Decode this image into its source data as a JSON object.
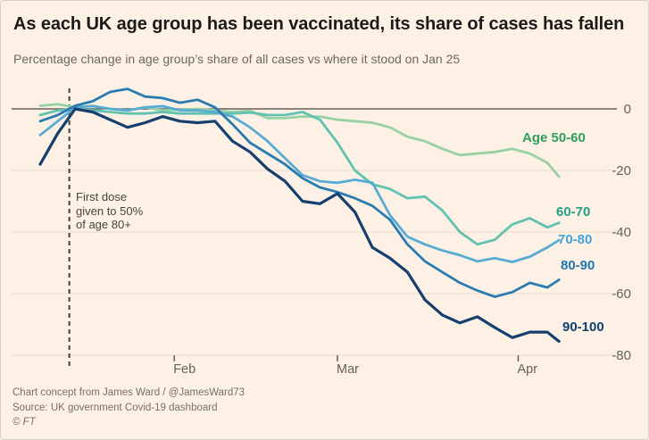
{
  "header": {
    "title": "As each UK age group has been vaccinated, its share of cases has fallen",
    "subtitle": "Percentage change in age group’s share of all cases vs where it stood on Jan 25"
  },
  "annotation": {
    "text": "First dose\ngiven to 50%\nof age 80+"
  },
  "footer": {
    "credit": "Chart concept from James Ward / @JamesWard73",
    "source": "Source: UK government Covid-19 dashboard",
    "copyright": "© FT"
  },
  "colors": {
    "background": "#fdf1e5",
    "grid": "#e9dbcb",
    "zero_line": "#66605a",
    "axis_text": "#66605a",
    "dashed_line": "#46403a",
    "annotation_text": "#4a443e",
    "footer_text": "#757068"
  },
  "chart_data": {
    "type": "line",
    "title": "As each UK age group has been vaccinated, its share of cases has fallen",
    "subtitle": "Percentage change in age group’s share of all cases vs where it stood on Jan 25",
    "x_unit": "date (2021)",
    "dates": [
      "Jan 9",
      "Jan 12",
      "Jan 15",
      "Jan 18",
      "Jan 21",
      "Jan 24",
      "Jan 27",
      "Jan 30",
      "Feb 2",
      "Feb 5",
      "Feb 8",
      "Feb 11",
      "Feb 14",
      "Feb 17",
      "Feb 20",
      "Feb 23",
      "Feb 26",
      "Mar 1",
      "Mar 4",
      "Mar 7",
      "Mar 10",
      "Mar 13",
      "Mar 16",
      "Mar 19",
      "Mar 22",
      "Mar 25",
      "Mar 28",
      "Mar 31",
      "Apr 3",
      "Apr 6",
      "Apr 8"
    ],
    "days": [
      0,
      3,
      6,
      9,
      12,
      15,
      18,
      21,
      24,
      27,
      30,
      33,
      36,
      39,
      42,
      45,
      48,
      51,
      54,
      57,
      60,
      63,
      66,
      69,
      72,
      75,
      78,
      81,
      84,
      87,
      89
    ],
    "x_ticks": [
      {
        "label": "Feb",
        "day": 23
      },
      {
        "label": "Mar",
        "day": 51
      },
      {
        "label": "Apr",
        "day": 82
      }
    ],
    "y_ticks": [
      0,
      -20,
      -40,
      -60,
      -80
    ],
    "ylim": [
      -80,
      8
    ],
    "grid": "horizontal only",
    "legend_position": "right edge, inline labels",
    "vline": {
      "day": 5,
      "annotation": "First dose given to 50% of age 80+"
    },
    "series": [
      {
        "name": "Age 50-60",
        "color": "#97d1a4",
        "label_color": "#2f9e5b",
        "values": [
          1,
          1.5,
          0.5,
          1,
          0,
          -0.5,
          0.5,
          -0.5,
          -0.3,
          0,
          -0.5,
          -1,
          -0.6,
          -3,
          -3,
          -2.5,
          -2.5,
          -3.5,
          -4,
          -4.5,
          -6,
          -9,
          -10.5,
          -13,
          -15,
          -14.5,
          -14,
          -13,
          -14.5,
          -17.5,
          -22
        ]
      },
      {
        "name": "60-70",
        "color": "#62c2b2",
        "label_color": "#1fa183",
        "values": [
          -2,
          -0.5,
          0,
          -0.5,
          -1,
          -1.5,
          -1.5,
          -1,
          -1.5,
          -1.5,
          -1.5,
          -1.5,
          -1.2,
          -2,
          -2,
          -1,
          -3.5,
          -11,
          -20,
          -24.5,
          -26,
          -29,
          -28.5,
          -33,
          -40,
          -44,
          -42.5,
          -37.5,
          -35.5,
          -38.5,
          -37
        ]
      },
      {
        "name": "70-80",
        "color": "#58abd4",
        "label_color": "#44a3d9",
        "values": [
          -8.5,
          -4,
          0.5,
          0.9,
          0,
          -0.5,
          0.5,
          0.9,
          -0.5,
          -0.5,
          -1,
          -2.5,
          -6,
          -10.5,
          -16,
          -21.5,
          -23.5,
          -24,
          -23,
          -24,
          -34.5,
          -41.5,
          -44,
          -46,
          -47.5,
          -49.5,
          -48.5,
          -49.7,
          -48,
          -45,
          -42.6
        ]
      },
      {
        "name": "80-90",
        "color": "#2a7cb0",
        "label_color": "#1e78b1",
        "values": [
          -4,
          -2,
          1,
          2.5,
          5.5,
          6.5,
          4,
          3.5,
          2,
          3,
          0.5,
          -5,
          -11,
          -14.5,
          -18,
          -22.5,
          -25.5,
          -27,
          -29,
          -31.5,
          -36,
          -44,
          -49.5,
          -53,
          -56.5,
          -59,
          -61,
          -59.5,
          -56.5,
          -58,
          -55.5
        ]
      },
      {
        "name": "90-100",
        "color": "#153f6e",
        "label_color": "#123f72",
        "values": [
          -18,
          -8,
          0,
          -1,
          -3.5,
          -6,
          -4.5,
          -2.5,
          -4,
          -4.5,
          -4,
          -10.5,
          -14,
          -19.5,
          -23.5,
          -30,
          -30.8,
          -27.5,
          -33.5,
          -45,
          -48.5,
          -53,
          -62,
          -67,
          -69.5,
          -67.5,
          -71,
          -74.3,
          -72.5,
          -72.5,
          -75.5
        ]
      }
    ]
  }
}
